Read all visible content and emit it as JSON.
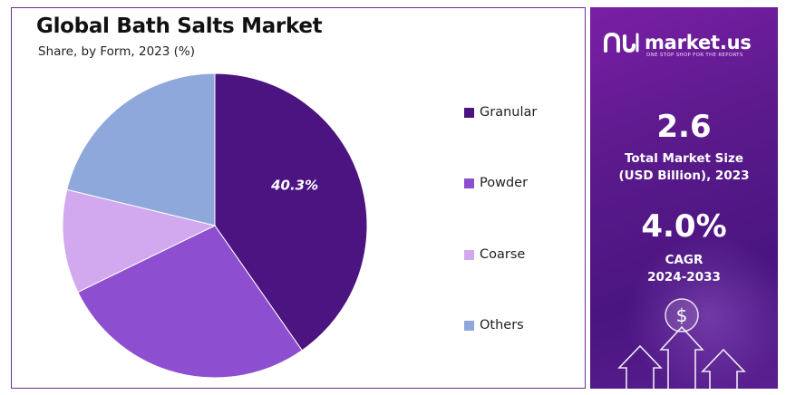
{
  "chart_data": {
    "type": "pie",
    "title": "Global Bath Salts Market",
    "subtitle": "Share, by Form, 2023 (%)",
    "categories": [
      "Granular",
      "Powder",
      "Coarse",
      "Others"
    ],
    "values": [
      40.3,
      27.5,
      11.0,
      21.2
    ],
    "colors": [
      "#4b1480",
      "#8d4fd0",
      "#d2a8ee",
      "#8fa8dc"
    ],
    "data_labels": [
      "40.3%",
      "",
      "",
      ""
    ],
    "legend_position": "right"
  },
  "sidebar": {
    "brand": "market.us",
    "tagline": "ONE STOP SHOP FOR THE REPORTS",
    "market_size": {
      "value": "2.6",
      "label_line1": "Total Market Size",
      "label_line2": "(USD Billion), 2023"
    },
    "cagr": {
      "value": "4.0%",
      "label_line1": "CAGR",
      "label_line2": "2024-2033"
    },
    "icons": [
      "brand-logo-icon",
      "dollar-coin-icon",
      "up-arrow-icon"
    ]
  }
}
